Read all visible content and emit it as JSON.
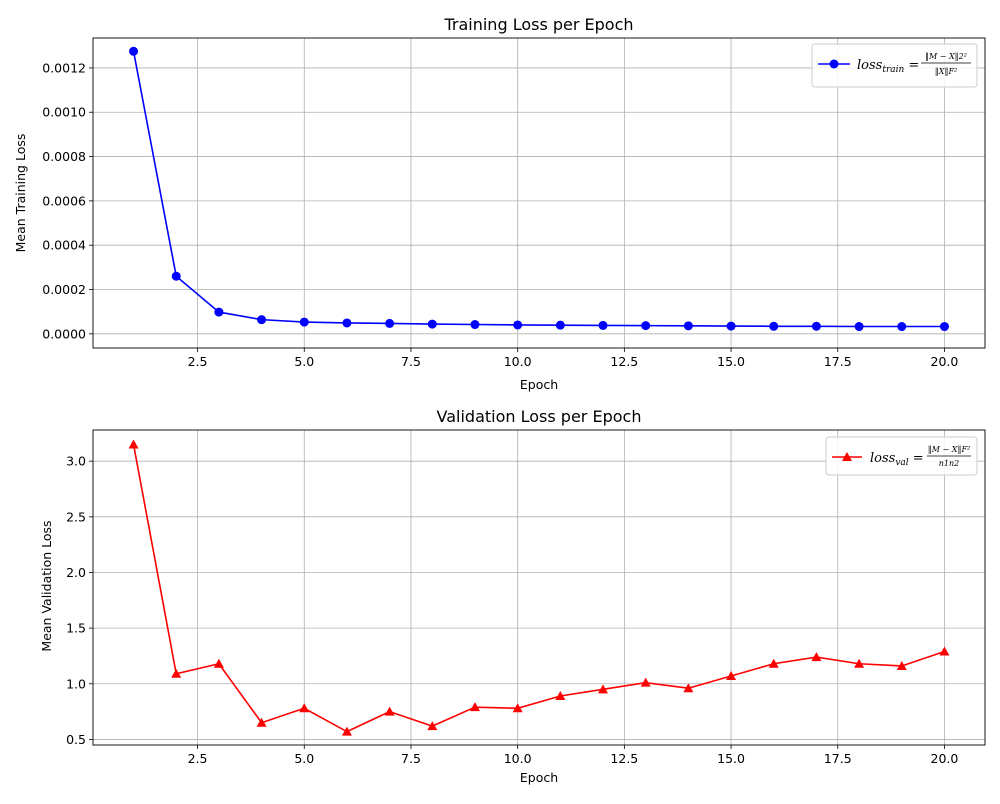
{
  "chart_data": [
    {
      "type": "line",
      "title": "Training Loss per Epoch",
      "xlabel": "Epoch",
      "ylabel": "Mean Training Loss",
      "xlim": [
        0.05,
        20.95
      ],
      "ylim": [
        -6.4e-05,
        0.001335
      ],
      "xticks": [
        2.5,
        5.0,
        7.5,
        10.0,
        12.5,
        15.0,
        17.5,
        20.0
      ],
      "xtick_labels": [
        "2.5",
        "5.0",
        "7.5",
        "10.0",
        "12.5",
        "15.0",
        "17.5",
        "20.0"
      ],
      "yticks": [
        0.0,
        0.0002,
        0.0004,
        0.0006,
        0.0008,
        0.001,
        0.0012
      ],
      "ytick_labels": [
        "0.0000",
        "0.0002",
        "0.0004",
        "0.0006",
        "0.0008",
        "0.0010",
        "0.0012"
      ],
      "grid": true,
      "legend_position": "top-right",
      "series": [
        {
          "name": "loss_train = ‖M − X‖2² / ‖X‖F²",
          "legend_main": "loss",
          "legend_sub": "train",
          "legend_numerator": "‖M − X‖2²",
          "legend_denominator": "‖X‖F²",
          "color": "#0000ff",
          "marker": "circle",
          "x": [
            1,
            2,
            3,
            4,
            5,
            6,
            7,
            8,
            9,
            10,
            11,
            12,
            13,
            14,
            15,
            16,
            17,
            18,
            19,
            20
          ],
          "y": [
            0.001275,
            0.00026,
            9.8e-05,
            6.4e-05,
            5.3e-05,
            4.9e-05,
            4.7e-05,
            4.4e-05,
            4.2e-05,
            4e-05,
            3.9e-05,
            3.8e-05,
            3.7e-05,
            3.6e-05,
            3.5e-05,
            3.4e-05,
            3.4e-05,
            3.3e-05,
            3.3e-05,
            3.3e-05
          ]
        }
      ]
    },
    {
      "type": "line",
      "title": "Validation Loss per Epoch",
      "xlabel": "Epoch",
      "ylabel": "Mean Validation Loss",
      "xlim": [
        0.05,
        20.95
      ],
      "ylim": [
        0.45,
        3.28
      ],
      "xticks": [
        2.5,
        5.0,
        7.5,
        10.0,
        12.5,
        15.0,
        17.5,
        20.0
      ],
      "xtick_labels": [
        "2.5",
        "5.0",
        "7.5",
        "10.0",
        "12.5",
        "15.0",
        "17.5",
        "20.0"
      ],
      "yticks": [
        0.5,
        1.0,
        1.5,
        2.0,
        2.5,
        3.0
      ],
      "ytick_labels": [
        "0.5",
        "1.0",
        "1.5",
        "2.0",
        "2.5",
        "3.0"
      ],
      "grid": true,
      "legend_position": "top-right",
      "series": [
        {
          "name": "loss_val = ‖M − X‖F² / n1n2",
          "legend_main": "loss",
          "legend_sub": "val",
          "legend_numerator": "‖M − X‖F²",
          "legend_denominator": "n1n2",
          "color": "#ff0000",
          "marker": "triangle",
          "x": [
            1,
            2,
            3,
            4,
            5,
            6,
            7,
            8,
            9,
            10,
            11,
            12,
            13,
            14,
            15,
            16,
            17,
            18,
            19,
            20
          ],
          "y": [
            3.15,
            1.09,
            1.18,
            0.65,
            0.78,
            0.57,
            0.75,
            0.62,
            0.79,
            0.78,
            0.89,
            0.95,
            1.01,
            0.96,
            1.07,
            1.18,
            1.24,
            1.18,
            1.16,
            1.29
          ]
        }
      ]
    }
  ]
}
